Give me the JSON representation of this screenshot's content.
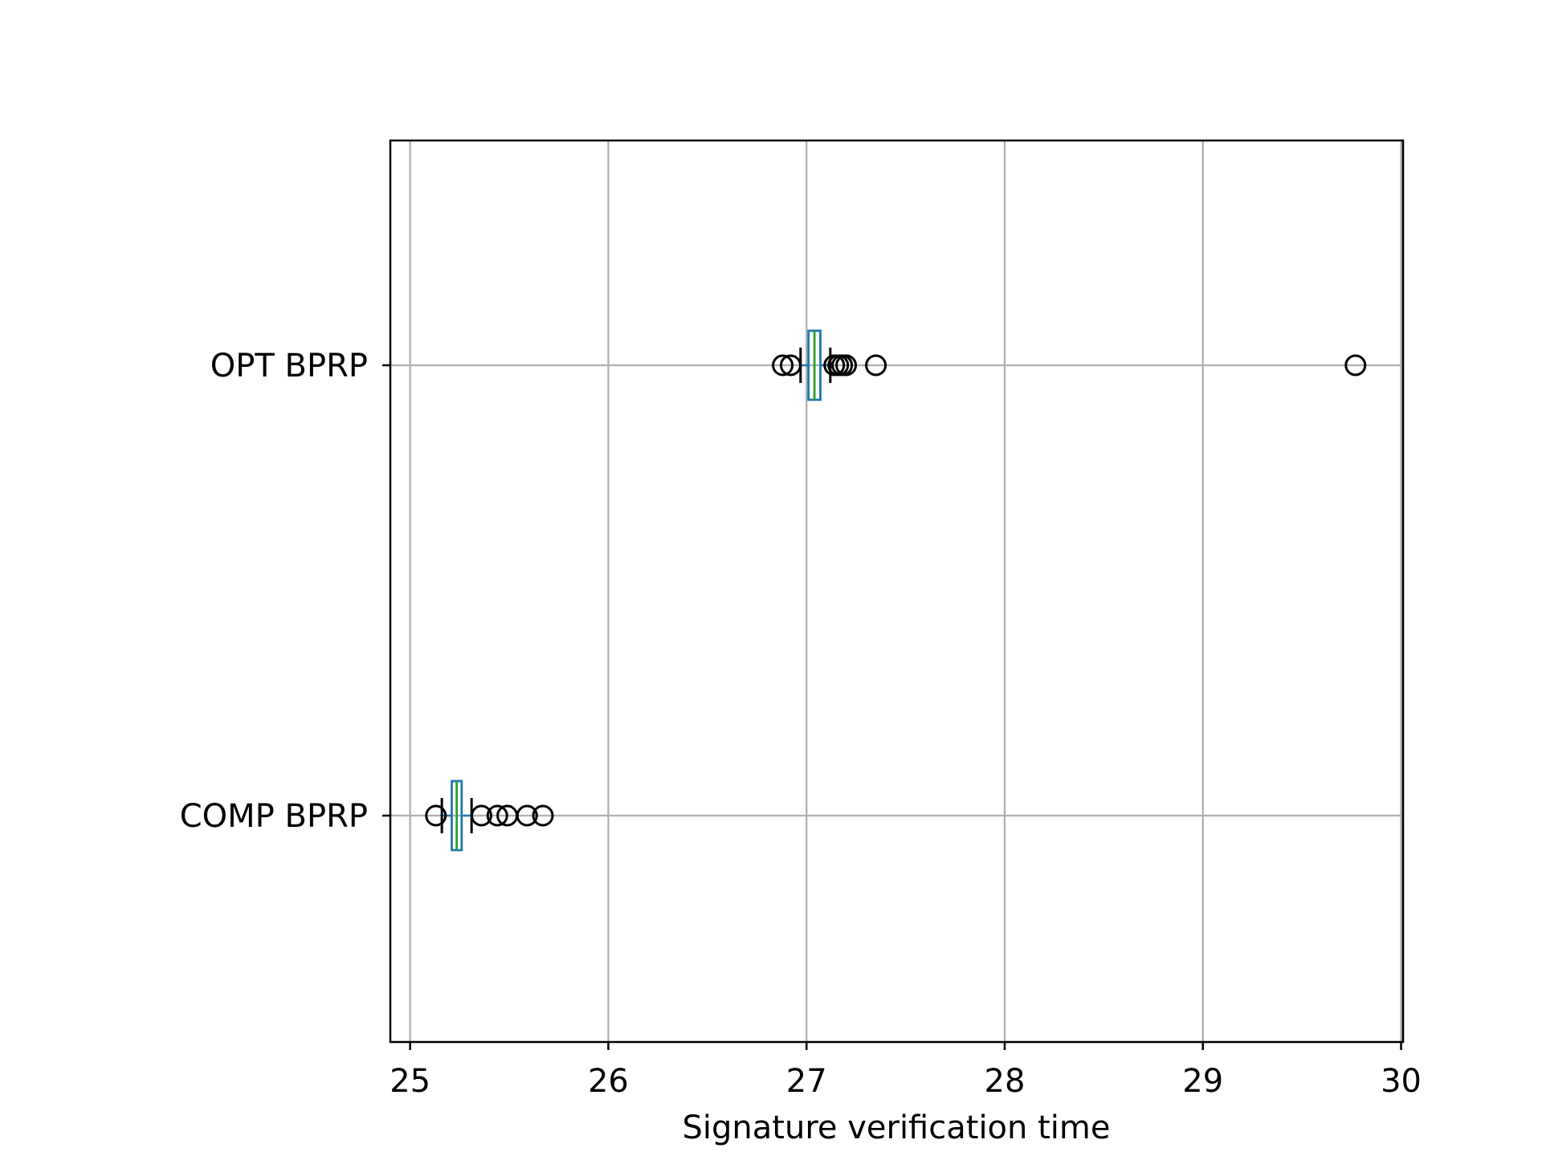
{
  "chart_data": {
    "type": "boxplot",
    "orientation": "horizontal",
    "xlabel": "Signature verification time",
    "ylabel": "",
    "xlim": [
      24.9,
      30.01
    ],
    "x_ticks": [
      25,
      26,
      27,
      28,
      29,
      30
    ],
    "grid": true,
    "legend": "none",
    "colors": {
      "box": "#1f77b4",
      "median": "#2ca02c",
      "whisker": "#000000",
      "grid": "#b0b0b0",
      "flier": "#000000"
    },
    "categories": [
      "OPT BPRP",
      "COMP BPRP"
    ],
    "series": [
      {
        "name": "OPT BPRP",
        "whisker_low": 26.97,
        "q1": 27.01,
        "median": 27.04,
        "q3": 27.07,
        "whisker_high": 27.12,
        "outliers": [
          26.88,
          26.92,
          27.14,
          27.16,
          27.18,
          27.2,
          27.35,
          29.77
        ]
      },
      {
        "name": "COMP BPRP",
        "whisker_low": 25.16,
        "q1": 25.21,
        "median": 25.235,
        "q3": 25.26,
        "whisker_high": 25.31,
        "outliers": [
          25.13,
          25.36,
          25.44,
          25.49,
          25.59,
          25.67
        ]
      }
    ]
  }
}
